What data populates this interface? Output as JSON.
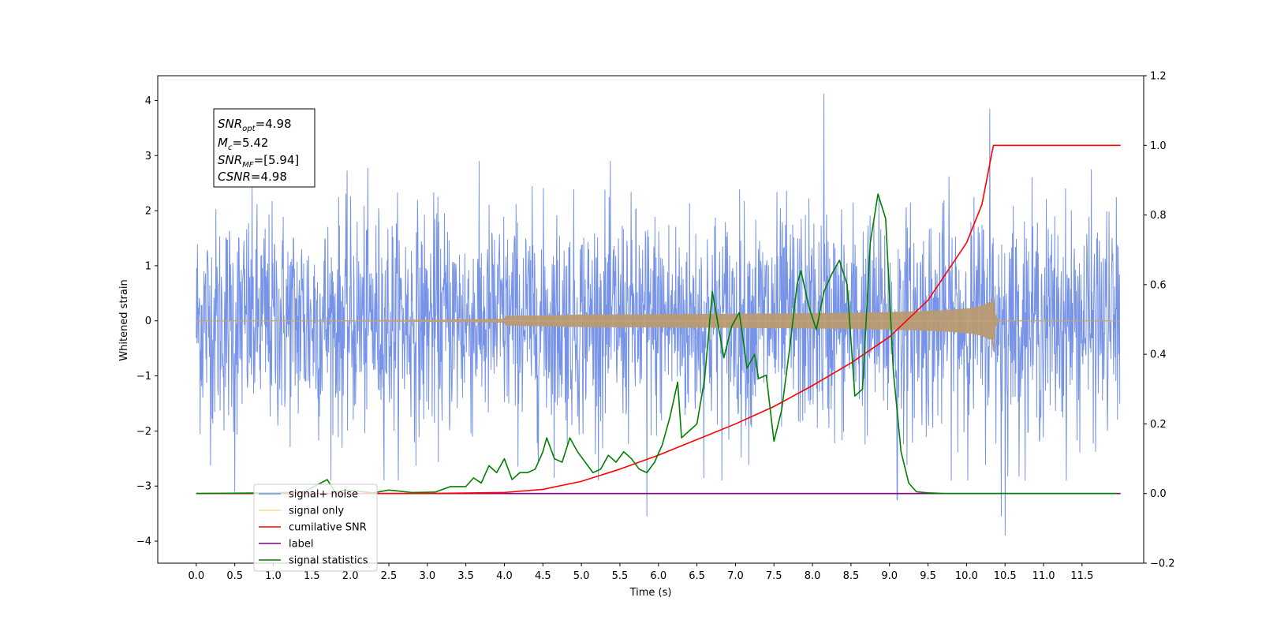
{
  "chart_data": {
    "type": "line",
    "title": "",
    "xlabel": "Time (s)",
    "ylabel": "Whitened strain",
    "y2label": "",
    "xlim": [
      -0.5,
      12.3
    ],
    "ylim": [
      -4.4,
      4.45
    ],
    "y2lim": [
      -0.2,
      1.2
    ],
    "grid": false,
    "legend_placement": "lower-left",
    "x_ticks": [
      "0.0",
      "0.5",
      "1.0",
      "1.5",
      "2.0",
      "2.5",
      "3.0",
      "3.5",
      "4.0",
      "4.5",
      "5.0",
      "5.5",
      "6.0",
      "6.5",
      "7.0",
      "7.5",
      "8.0",
      "8.5",
      "9.0",
      "9.5",
      "10.0",
      "10.5",
      "11.0",
      "11.5"
    ],
    "y_ticks": [
      "4",
      "3",
      "2",
      "1",
      "0",
      "−1",
      "−2",
      "−3",
      "−4"
    ],
    "y_tick_values": [
      4,
      3,
      2,
      1,
      0,
      -1,
      -2,
      -3,
      -4
    ],
    "y2_ticks": [
      "1.2",
      "1.0",
      "0.8",
      "0.6",
      "0.4",
      "0.2",
      "0.0",
      "−0.2"
    ],
    "y2_tick_values": [
      1.2,
      1.0,
      0.8,
      0.6,
      0.4,
      0.2,
      0.0,
      -0.2
    ],
    "annotation": {
      "snr_opt": {
        "symbol": "SNR",
        "sub": "opt",
        "value": "=4.98"
      },
      "mc": {
        "symbol": "M",
        "sub": "c",
        "value": "=5.42"
      },
      "snr_mf": {
        "symbol": "SNR",
        "sub": "MF",
        "value": "=[5.94]"
      },
      "csnr": {
        "symbol": "CSNR",
        "value": "=4.98"
      }
    },
    "series": [
      {
        "name": "signal+ noise",
        "color": "#6f8de6",
        "axis": "left",
        "kind": "noise",
        "x_range": [
          0.0,
          11.99
        ],
        "typical_amplitude": 1.0,
        "max_excursions": [
          [
            8.15,
            4.12
          ],
          [
            10.5,
            -3.9
          ],
          [
            10.3,
            3.85
          ],
          [
            10.45,
            -3.55
          ],
          [
            5.85,
            -3.55
          ],
          [
            9.1,
            -3.25
          ],
          [
            0.5,
            -3.1
          ]
        ]
      },
      {
        "name": "signal only",
        "color": "#ffa500",
        "axis": "left",
        "kind": "chirp",
        "x_range": [
          0.0,
          11.99
        ],
        "merger_time": 10.35,
        "peak_amplitude": 0.45
      },
      {
        "name": "cumilative SNR",
        "color": "#ff0000",
        "axis": "right",
        "x": [
          0.0,
          3.0,
          4.0,
          4.5,
          5.0,
          5.5,
          6.0,
          6.5,
          7.0,
          7.5,
          8.0,
          8.5,
          9.0,
          9.5,
          10.0,
          10.2,
          10.34,
          10.35,
          12.0
        ],
        "y": [
          0.0,
          0.0,
          0.003,
          0.012,
          0.035,
          0.07,
          0.11,
          0.155,
          0.2,
          0.25,
          0.31,
          0.375,
          0.45,
          0.555,
          0.72,
          0.83,
          0.99,
          1.0,
          1.0
        ]
      },
      {
        "name": "label",
        "color": "#800080",
        "axis": "right",
        "x": [
          0.0,
          12.0
        ],
        "y": [
          0.0,
          0.0
        ]
      },
      {
        "name": "signal statistics",
        "color": "#008000",
        "axis": "right",
        "x": [
          0.0,
          1.0,
          1.4,
          1.7,
          1.8,
          1.95,
          2.3,
          2.5,
          2.8,
          3.1,
          3.3,
          3.5,
          3.6,
          3.7,
          3.8,
          3.9,
          4.0,
          4.1,
          4.2,
          4.3,
          4.4,
          4.5,
          4.55,
          4.65,
          4.75,
          4.85,
          4.95,
          5.05,
          5.15,
          5.25,
          5.35,
          5.45,
          5.55,
          5.65,
          5.75,
          5.85,
          5.95,
          6.05,
          6.15,
          6.25,
          6.3,
          6.4,
          6.5,
          6.6,
          6.7,
          6.85,
          6.95,
          7.05,
          7.15,
          7.25,
          7.3,
          7.4,
          7.5,
          7.6,
          7.7,
          7.8,
          7.85,
          7.95,
          8.05,
          8.15,
          8.25,
          8.35,
          8.45,
          8.55,
          8.65,
          8.75,
          8.85,
          8.95,
          9.05,
          9.15,
          9.25,
          9.35,
          9.5,
          9.7,
          10.0,
          11.0,
          11.95
        ],
        "y": [
          0.0,
          0.002,
          0.005,
          0.04,
          0.005,
          0.01,
          0.002,
          0.01,
          0.003,
          0.004,
          0.02,
          0.02,
          0.045,
          0.03,
          0.08,
          0.06,
          0.1,
          0.04,
          0.06,
          0.06,
          0.07,
          0.12,
          0.16,
          0.1,
          0.09,
          0.16,
          0.12,
          0.09,
          0.06,
          0.07,
          0.11,
          0.09,
          0.12,
          0.1,
          0.07,
          0.06,
          0.09,
          0.14,
          0.22,
          0.32,
          0.16,
          0.18,
          0.2,
          0.33,
          0.58,
          0.39,
          0.48,
          0.52,
          0.36,
          0.4,
          0.33,
          0.34,
          0.15,
          0.24,
          0.41,
          0.6,
          0.64,
          0.54,
          0.47,
          0.58,
          0.63,
          0.67,
          0.6,
          0.28,
          0.3,
          0.72,
          0.86,
          0.79,
          0.35,
          0.12,
          0.03,
          0.005,
          0.002,
          0.0,
          0.0,
          0.0,
          0.0
        ]
      }
    ]
  }
}
